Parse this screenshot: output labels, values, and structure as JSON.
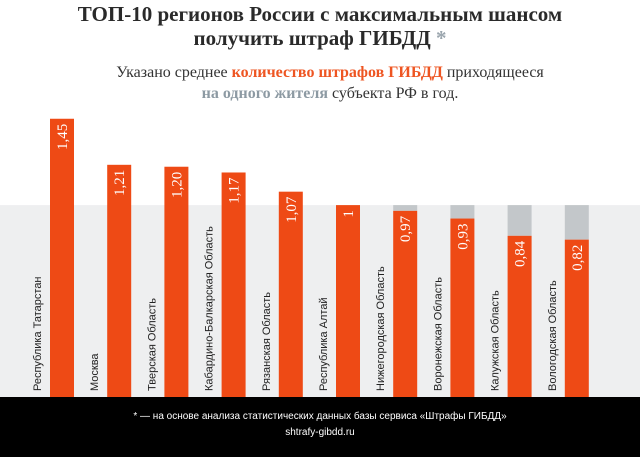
{
  "header": {
    "title_line1": "ТОП-10 регионов России с максимальным шансом",
    "title_line2": "получить штраф ГИБДД",
    "title_asterisk": "*"
  },
  "subtitle": {
    "part1": "Указано среднее ",
    "highlight1": "количество штрафов ГИБДД",
    "part2": " приходящееся",
    "highlight2": "на одного жителя",
    "part3": " субъекта РФ в год."
  },
  "footer": {
    "note": "* —  на основе анализа статистических данных базы сервиса «Штрафы ГИБДД»",
    "site": "shtrafy-gibdd.ru"
  },
  "colors": {
    "bar": "#ee4a15",
    "band": "#eeeff0",
    "cap": "#c3c7ca",
    "label_on_bar": "#ffffff",
    "category_text": "#222222"
  },
  "chart_data": {
    "type": "bar",
    "orientation": "vertical",
    "categories": [
      "Республика Татарстан",
      "Москва",
      "Тверская Область",
      "Кабардино-Балкарская Область",
      "Рязанская Область",
      "Республика Алтай",
      "Нижегородская Область",
      "Воронежская Область",
      "Калужская Область",
      "Вологодская Область"
    ],
    "values": [
      1.45,
      1.21,
      1.2,
      1.17,
      1.07,
      1,
      0.97,
      0.93,
      0.84,
      0.82
    ],
    "value_labels": [
      "1,45",
      "1,21",
      "1,20",
      "1,17",
      "1,07",
      "1",
      "0,97",
      "0,93",
      "0,84",
      "0,82"
    ],
    "reference_value": 1.0,
    "ylim": [
      0,
      1.48
    ],
    "grid": false,
    "legend": "none"
  }
}
